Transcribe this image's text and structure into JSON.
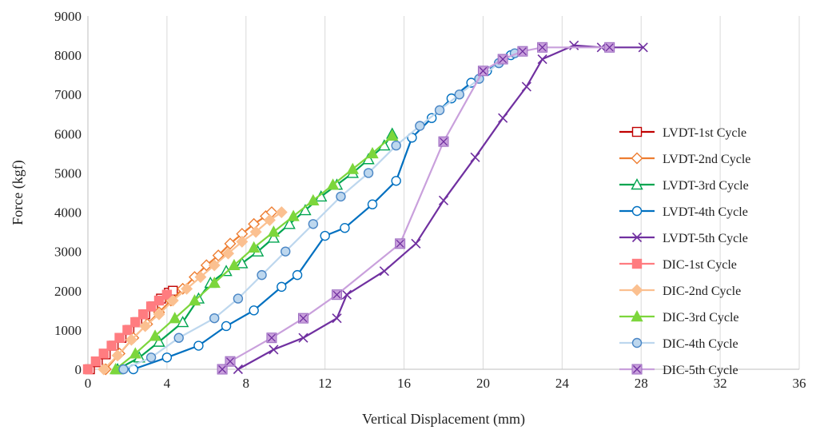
{
  "chart_data": {
    "type": "scatter",
    "title": "",
    "xlabel": "Vertical Displacement (mm)",
    "ylabel": "Force (kgf)",
    "xlim": [
      0,
      36
    ],
    "ylim": [
      0,
      9000
    ],
    "xticks": [
      "0",
      "4",
      "8",
      "12",
      "16",
      "20",
      "24",
      "28",
      "32",
      "36"
    ],
    "yticks": [
      "0",
      "1000",
      "2000",
      "3000",
      "4000",
      "5000",
      "6000",
      "7000",
      "8000",
      "9000"
    ],
    "grid": "vertical",
    "legend_position": "right",
    "series": [
      {
        "name": "LVDT-1st Cycle",
        "color": "#c00000",
        "marker": "square-open",
        "x": [
          0.1,
          0.5,
          0.9,
          1.3,
          1.7,
          2.1,
          2.5,
          2.9,
          3.3,
          3.7,
          4.1,
          4.3
        ],
        "y": [
          0,
          180,
          380,
          600,
          800,
          1000,
          1200,
          1400,
          1600,
          1800,
          1950,
          2000
        ]
      },
      {
        "name": "LVDT-2nd Cycle",
        "color": "#ed7d31",
        "marker": "diamond-open",
        "x": [
          0.9,
          1.6,
          2.3,
          3.0,
          3.6,
          4.2,
          4.8,
          5.4,
          6.0,
          6.6,
          7.2,
          7.8,
          8.4,
          9.0,
          9.3
        ],
        "y": [
          0,
          400,
          800,
          1150,
          1450,
          1750,
          2050,
          2350,
          2650,
          2900,
          3200,
          3450,
          3700,
          3900,
          4000
        ]
      },
      {
        "name": "LVDT-3rd Cycle",
        "color": "#00a550",
        "marker": "triangle-open",
        "x": [
          1.5,
          2.6,
          3.6,
          4.8,
          5.6,
          6.2,
          7.0,
          7.8,
          8.6,
          9.4,
          10.2,
          11.0,
          11.8,
          12.6,
          13.4,
          14.2,
          15.0,
          15.4
        ],
        "y": [
          0,
          300,
          700,
          1200,
          1800,
          2200,
          2500,
          2700,
          3000,
          3350,
          3700,
          4050,
          4400,
          4700,
          5000,
          5350,
          5700,
          6000
        ]
      },
      {
        "name": "LVDT-4th Cycle",
        "color": "#0070c0",
        "marker": "circle-open",
        "x": [
          2.3,
          4.0,
          5.6,
          7.0,
          8.4,
          9.8,
          10.6,
          12.0,
          13.0,
          14.4,
          15.6,
          16.4,
          17.4,
          18.4,
          19.4,
          20.2,
          20.8,
          21.4
        ],
        "y": [
          0,
          300,
          600,
          1100,
          1500,
          2100,
          2400,
          3400,
          3600,
          4200,
          4800,
          5900,
          6400,
          6900,
          7300,
          7600,
          7800,
          8000
        ]
      },
      {
        "name": "LVDT-5th Cycle",
        "color": "#7030a0",
        "marker": "x",
        "x": [
          7.6,
          9.4,
          10.9,
          12.6,
          13.1,
          15.0,
          16.6,
          18.0,
          19.6,
          21.0,
          22.2,
          23.0,
          24.6,
          26.0,
          28.1
        ],
        "y": [
          0,
          500,
          800,
          1300,
          1900,
          2500,
          3200,
          4300,
          5400,
          6400,
          7200,
          7900,
          8250,
          8200,
          8200
        ]
      },
      {
        "name": "DIC-1st Cycle",
        "color": "#ff7c80",
        "marker": "square",
        "x": [
          0.0,
          0.4,
          0.8,
          1.2,
          1.6,
          2.0,
          2.4,
          2.8,
          3.2,
          3.6,
          4.0
        ],
        "y": [
          0,
          200,
          400,
          600,
          800,
          1000,
          1200,
          1400,
          1600,
          1750,
          1900
        ]
      },
      {
        "name": "DIC-2nd Cycle",
        "color": "#fbc090",
        "marker": "diamond",
        "x": [
          0.8,
          1.5,
          2.2,
          2.9,
          3.6,
          4.3,
          5.0,
          5.7,
          6.4,
          7.1,
          7.8,
          8.5,
          9.2,
          9.8
        ],
        "y": [
          0,
          350,
          750,
          1100,
          1400,
          1750,
          2050,
          2350,
          2650,
          2950,
          3250,
          3500,
          3800,
          4000
        ]
      },
      {
        "name": "DIC-3rd Cycle",
        "color": "#7cd63c",
        "marker": "triangle",
        "x": [
          1.4,
          2.4,
          3.4,
          4.4,
          5.4,
          6.4,
          7.4,
          8.4,
          9.4,
          10.4,
          11.4,
          12.4,
          13.4,
          14.4,
          15.4
        ],
        "y": [
          0,
          400,
          850,
          1300,
          1750,
          2200,
          2650,
          3100,
          3500,
          3900,
          4300,
          4700,
          5100,
          5500,
          5950
        ]
      },
      {
        "name": "DIC-4th Cycle",
        "color": "#bdd7ee",
        "marker": "circle",
        "x": [
          1.8,
          3.2,
          4.6,
          6.4,
          7.6,
          8.8,
          10.0,
          11.4,
          12.8,
          14.2,
          15.6,
          16.8,
          17.8,
          18.8,
          19.8,
          20.8,
          21.6
        ],
        "y": [
          0,
          300,
          800,
          1300,
          1800,
          2400,
          3000,
          3700,
          4400,
          5000,
          5700,
          6200,
          6600,
          7000,
          7400,
          7800,
          8050
        ]
      },
      {
        "name": "DIC-5th Cycle",
        "color": "#c9a0dc",
        "marker": "square-x",
        "x": [
          6.8,
          7.2,
          9.3,
          10.9,
          12.6,
          15.8,
          18.0,
          20.0,
          21.0,
          22.0,
          23.0,
          26.4
        ],
        "y": [
          0,
          200,
          800,
          1300,
          1900,
          3200,
          5800,
          7600,
          7900,
          8100,
          8200,
          8200
        ]
      }
    ]
  }
}
